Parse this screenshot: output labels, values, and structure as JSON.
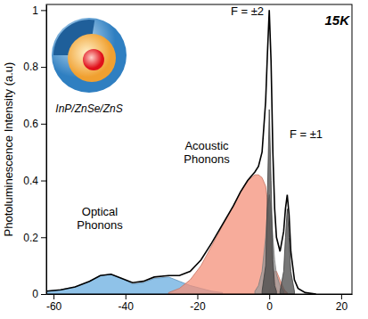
{
  "chart_data": {
    "type": "area",
    "y_label": "Photoluminescence Intensity (a.u)",
    "x": [
      -62,
      -58,
      -54,
      -50,
      -47,
      -44,
      -41,
      -38,
      -35,
      -32,
      -28,
      -25,
      -22,
      -19,
      -16,
      -13,
      -10,
      -8,
      -6,
      -4,
      -3,
      -2,
      -1,
      -0.5,
      0,
      0.5,
      1,
      1.5,
      2,
      3,
      4,
      4.5,
      5,
      5.5,
      6,
      7,
      8,
      10,
      13,
      16,
      20,
      23
    ],
    "series": [
      {
        "type": "area",
        "color": "#6aaee0",
        "values": [
          0.01,
          0.015,
          0.025,
          0.045,
          0.065,
          0.07,
          0.055,
          0.035,
          0.04,
          0.055,
          0.06,
          0.045,
          0.03,
          0.02,
          0.01,
          0.005,
          null,
          null,
          null,
          null,
          null,
          null,
          null,
          null,
          null,
          null,
          null,
          null,
          null,
          null,
          null,
          null,
          null,
          null,
          null,
          null,
          null,
          null,
          null,
          null,
          null,
          null
        ]
      },
      {
        "type": "area",
        "color": "#f4907a",
        "values": [
          null,
          null,
          null,
          null,
          null,
          null,
          null,
          null,
          null,
          null,
          0.005,
          0.02,
          0.05,
          0.1,
          0.17,
          0.24,
          0.31,
          0.36,
          0.4,
          0.42,
          0.42,
          0.41,
          0.38,
          0.33,
          0.26,
          0.18,
          0.1,
          0.05,
          0.02,
          0.005,
          null,
          null,
          null,
          null,
          null,
          null,
          null,
          null,
          null,
          null,
          null,
          null
        ]
      },
      {
        "type": "area",
        "color": "#f4907a",
        "values": [
          null,
          null,
          null,
          null,
          null,
          null,
          null,
          null,
          null,
          null,
          null,
          null,
          null,
          null,
          null,
          null,
          null,
          null,
          null,
          null,
          null,
          null,
          null,
          null,
          0.01,
          0.03,
          0.06,
          0.08,
          0.08,
          0.05,
          0.02,
          0.01,
          0.005,
          null,
          null,
          null,
          null,
          null,
          null,
          null,
          null,
          null
        ]
      },
      {
        "type": "area",
        "color": "#9a9a9a",
        "values": [
          null,
          null,
          null,
          null,
          null,
          null,
          null,
          null,
          null,
          null,
          null,
          null,
          null,
          null,
          null,
          null,
          null,
          null,
          null,
          0.01,
          0.03,
          0.08,
          0.2,
          0.3,
          0.35,
          0.3,
          0.2,
          0.12,
          0.07,
          0.03,
          0.01,
          null,
          null,
          null,
          null,
          null,
          null,
          null,
          null,
          null,
          null,
          null
        ]
      },
      {
        "type": "area",
        "color": "#4a4a4a",
        "values": [
          null,
          null,
          null,
          null,
          null,
          null,
          null,
          null,
          null,
          null,
          null,
          null,
          null,
          null,
          null,
          null,
          null,
          null,
          null,
          null,
          null,
          0.01,
          0.1,
          0.35,
          0.65,
          0.4,
          0.12,
          0.03,
          0.01,
          null,
          null,
          null,
          null,
          null,
          null,
          null,
          null,
          null,
          null,
          null,
          null,
          null
        ]
      },
      {
        "type": "area",
        "color": "#4a4a4a",
        "values": [
          null,
          null,
          null,
          null,
          null,
          null,
          null,
          null,
          null,
          null,
          null,
          null,
          null,
          null,
          null,
          null,
          null,
          null,
          null,
          null,
          null,
          null,
          null,
          null,
          null,
          null,
          null,
          null,
          null,
          0.01,
          0.08,
          0.2,
          0.3,
          0.2,
          0.08,
          0.01,
          null,
          null,
          null,
          null,
          null,
          null
        ]
      },
      {
        "type": "line",
        "color": "#000000",
        "values": [
          0.01,
          0.015,
          0.025,
          0.045,
          0.065,
          0.07,
          0.055,
          0.04,
          0.045,
          0.06,
          0.065,
          0.065,
          0.08,
          0.12,
          0.18,
          0.245,
          0.31,
          0.36,
          0.4,
          0.43,
          0.45,
          0.5,
          0.68,
          0.85,
          1.0,
          0.82,
          0.5,
          0.3,
          0.2,
          0.15,
          0.22,
          0.3,
          0.35,
          0.28,
          0.15,
          0.05,
          0.02,
          0.005,
          0,
          null,
          null,
          null
        ]
      }
    ],
    "xlim": [
      -62,
      23
    ],
    "xticks": [
      -60,
      -40,
      -20,
      0,
      20
    ],
    "ylim": [
      0,
      1.02
    ],
    "yticks": [
      0,
      0.2,
      0.4,
      0.6,
      0.8,
      1
    ],
    "annotations": [
      "15K",
      "F = ±2",
      "F = ±1",
      "Acoustic Phonons",
      "Optical Phonons",
      "InP/ZnSe/ZnS"
    ]
  }
}
